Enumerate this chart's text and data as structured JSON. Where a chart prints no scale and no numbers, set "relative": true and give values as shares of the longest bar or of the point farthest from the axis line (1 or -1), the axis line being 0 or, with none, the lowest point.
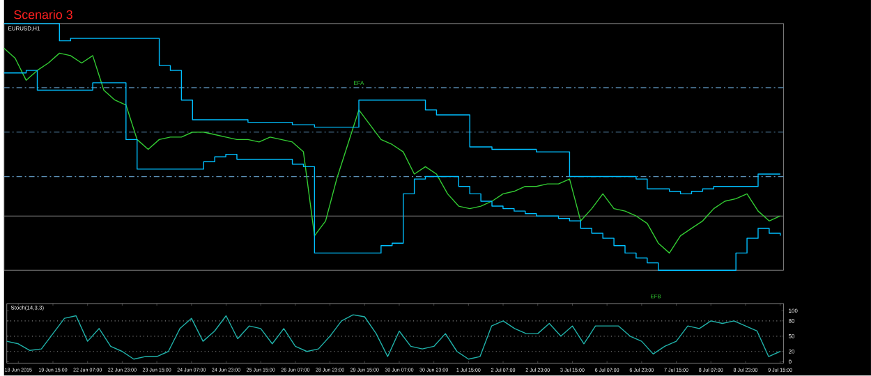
{
  "chart_data": [
    {
      "type": "line",
      "title": "EURUSD,H1",
      "relative": true,
      "annotations": [
        "Scenario 3",
        "EFA",
        "EFB"
      ],
      "categories": [
        null,
        null,
        null,
        null,
        null,
        null,
        null,
        null,
        null,
        null,
        null,
        null,
        null,
        null,
        null,
        null,
        null,
        null,
        null,
        null,
        null,
        null,
        null,
        null,
        null,
        null,
        null,
        null,
        null,
        null,
        null,
        null,
        null,
        null,
        null,
        null,
        null,
        null,
        null,
        null,
        null,
        null,
        null,
        null,
        null,
        null,
        null,
        null,
        null,
        null,
        null,
        null,
        null,
        null,
        null,
        null,
        null,
        null,
        null,
        null,
        null,
        null,
        null,
        null,
        null,
        null,
        null,
        null,
        null,
        null,
        null
      ],
      "series": [
        {
          "type": "line",
          "color": "#33cc33",
          "values": [
            0.9,
            0.86,
            0.77,
            0.81,
            0.84,
            0.88,
            0.87,
            0.84,
            0.87,
            0.73,
            0.69,
            0.67,
            0.53,
            0.49,
            0.53,
            0.54,
            0.54,
            0.56,
            0.56,
            0.55,
            0.54,
            0.53,
            0.53,
            0.52,
            0.54,
            0.53,
            0.52,
            0.48,
            0.14,
            0.2,
            0.37,
            0.51,
            0.65,
            0.59,
            0.53,
            0.51,
            0.48,
            0.39,
            0.42,
            0.39,
            0.31,
            0.26,
            0.25,
            0.26,
            0.28,
            0.31,
            0.32,
            0.34,
            0.34,
            0.35,
            0.35,
            0.37,
            0.2,
            0.25,
            0.31,
            0.25,
            0.24,
            0.22,
            0.19,
            0.11,
            0.07,
            0.14,
            0.17,
            0.2,
            0.25,
            0.28,
            0.29,
            0.31,
            0.24,
            0.2,
            0.22
          ]
        },
        {
          "type": "step",
          "color": "#00bfff",
          "values": [
            1.0,
            1.0,
            1.0,
            1.0,
            1.0,
            0.93,
            0.94,
            0.94,
            0.94,
            0.94,
            0.94,
            0.94,
            0.94,
            0.94,
            0.83,
            0.81,
            0.69,
            0.61,
            0.61,
            0.61,
            0.61,
            0.61,
            0.6,
            0.6,
            0.6,
            0.6,
            0.59,
            0.59,
            0.58,
            0.58,
            0.58,
            0.58,
            0.69,
            0.69,
            0.69,
            0.69,
            0.69,
            0.69,
            0.65,
            0.63,
            0.63,
            0.63,
            0.5,
            0.5,
            0.49,
            0.49,
            0.49,
            0.49,
            0.48,
            0.48,
            0.48,
            0.38,
            0.38,
            0.38,
            0.38,
            0.38,
            0.38,
            0.37,
            0.33,
            0.33,
            0.32,
            0.31,
            0.32,
            0.33,
            0.34,
            0.34,
            0.34,
            0.34,
            0.39,
            0.39,
            0.39
          ]
        },
        {
          "type": "step",
          "color": "#00bfff",
          "values": [
            0.8,
            0.8,
            0.81,
            0.73,
            0.73,
            0.73,
            0.73,
            0.73,
            0.76,
            0.76,
            0.76,
            0.53,
            0.41,
            0.41,
            0.41,
            0.41,
            0.41,
            0.41,
            0.44,
            0.46,
            0.47,
            0.45,
            0.45,
            0.45,
            0.45,
            0.45,
            0.43,
            0.42,
            0.07,
            0.07,
            0.07,
            0.07,
            0.07,
            0.07,
            0.1,
            0.11,
            0.31,
            0.37,
            0.38,
            0.38,
            0.38,
            0.34,
            0.31,
            0.28,
            0.26,
            0.25,
            0.24,
            0.23,
            0.22,
            0.22,
            0.21,
            0.2,
            0.17,
            0.15,
            0.13,
            0.1,
            0.07,
            0.05,
            0.03,
            0,
            0,
            0,
            0,
            0,
            0,
            0,
            0.07,
            0.13,
            0.17,
            0.15,
            0.14
          ]
        }
      ],
      "ref_lines": [
        {
          "axis": "y",
          "value": 0.74,
          "color": "#5b8fb5",
          "line_style": "dashed"
        },
        {
          "axis": "y",
          "value": 0.56,
          "color": "#5b8fb5",
          "line_style": "dashed"
        },
        {
          "axis": "y",
          "value": 0.38,
          "color": "#5b8fb5",
          "line_style": "dashed"
        },
        {
          "axis": "y",
          "value": 0.22,
          "color": "#808080",
          "line_style": "solid"
        }
      ]
    },
    {
      "type": "line",
      "title": "Stoch(14,3,3)",
      "categories": [
        null,
        "18 Jun 2015",
        null,
        null,
        "19 Jun 15:00",
        null,
        null,
        "22 Jun 07:00",
        null,
        null,
        "22 Jun 23:00",
        null,
        null,
        "23 Jun 15:00",
        null,
        null,
        "24 Jun 07:00",
        null,
        null,
        "24 Jun 23:00",
        null,
        null,
        "25 Jun 15:00",
        null,
        null,
        "26 Jun 07:00",
        null,
        null,
        "28 Jun 23:00",
        null,
        null,
        "29 Jun 15:00",
        null,
        null,
        "30 Jun 07:00",
        null,
        null,
        "30 Jun 23:00",
        null,
        null,
        "1 Jul 15:00",
        null,
        null,
        "2 Jul 07:00",
        null,
        null,
        "2 Jul 23:00",
        null,
        null,
        "3 Jul 15:00",
        null,
        null,
        "6 Jul 07:00",
        null,
        null,
        "6 Jul 23:00",
        null,
        null,
        "7 Jul 15:00",
        null,
        null,
        "8 Jul 07:00",
        null,
        null,
        "8 Jul 23:00",
        null,
        null,
        "9 Jul 15:00"
      ],
      "ylim": [
        -3,
        114
      ],
      "yticks": [
        0,
        20,
        50,
        80,
        100
      ],
      "series": [
        {
          "type": "line",
          "color": "#20b2aa",
          "values": [
            40,
            35,
            22,
            25,
            55,
            85,
            90,
            40,
            65,
            30,
            20,
            5,
            10,
            10,
            20,
            65,
            85,
            40,
            60,
            90,
            45,
            70,
            65,
            35,
            65,
            30,
            20,
            25,
            50,
            80,
            92,
            88,
            55,
            10,
            60,
            30,
            25,
            30,
            55,
            20,
            5,
            10,
            70,
            80,
            65,
            55,
            55,
            75,
            50,
            70,
            35,
            70,
            70,
            70,
            50,
            40,
            15,
            30,
            40,
            70,
            65,
            80,
            75,
            80,
            70,
            60,
            10,
            20
          ]
        }
      ],
      "ref_lines": [
        {
          "axis": "y",
          "value": 20,
          "color": "#808080",
          "line_style": "dotted"
        },
        {
          "axis": "y",
          "value": 50,
          "color": "#808080",
          "line_style": "dotted"
        },
        {
          "axis": "y",
          "value": 80,
          "color": "#808080",
          "line_style": "dotted"
        }
      ]
    }
  ]
}
